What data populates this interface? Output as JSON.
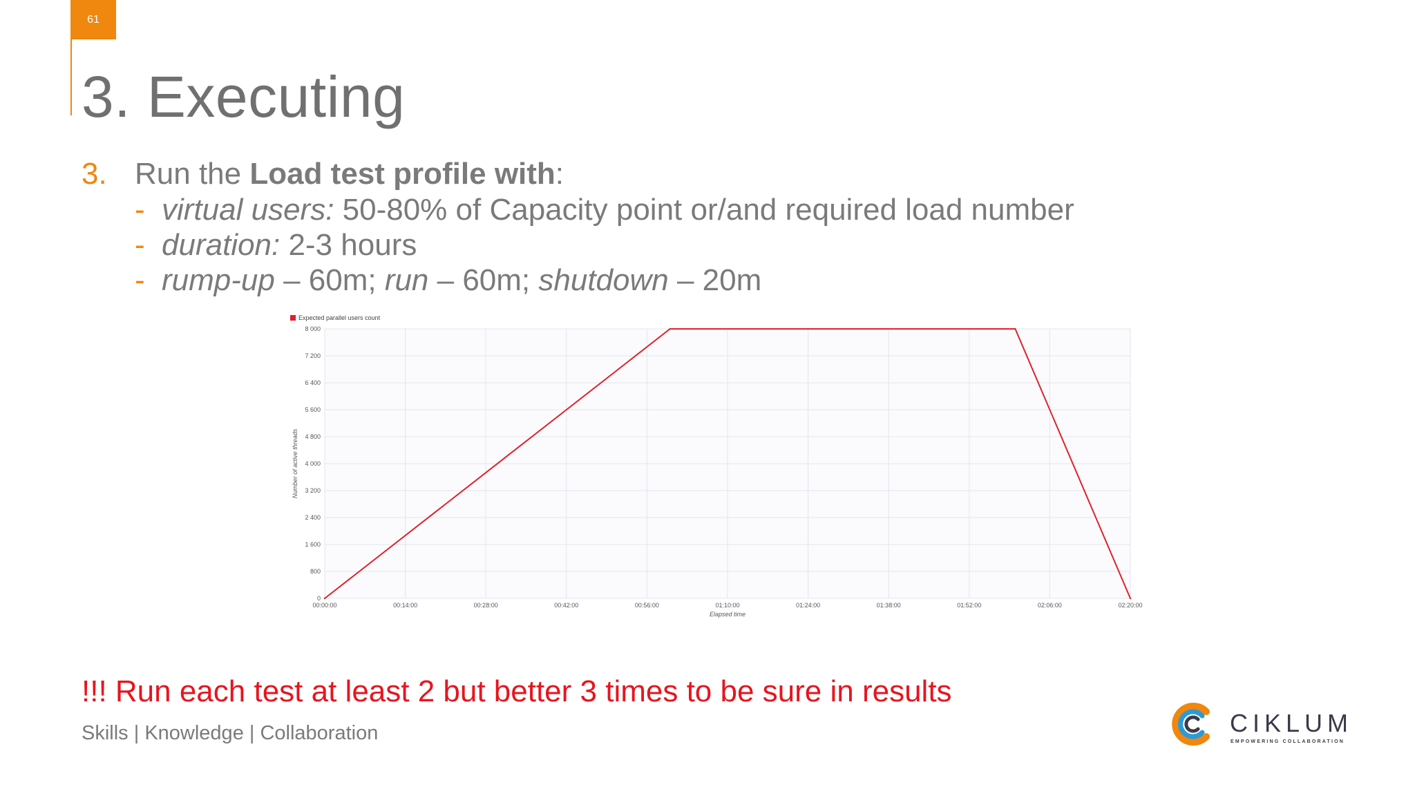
{
  "slide": {
    "number": "61",
    "title": "3. Executing"
  },
  "list": {
    "number": "3.",
    "intro": "Run the ",
    "intro_bold": "Load test profile with",
    "intro_end": ":",
    "items": [
      {
        "dash": "-",
        "italic": "virtual users:",
        "rest": " 50-80% of Capacity point or/and required load number"
      },
      {
        "dash": "-",
        "italic": "duration:",
        "rest": " 2-3 hours"
      },
      {
        "dash": "-",
        "parts": [
          {
            "t": "rump-up",
            "i": true
          },
          {
            "t": " – 60m; ",
            "i": false
          },
          {
            "t": "run",
            "i": true
          },
          {
            "t": " – 60m; ",
            "i": false
          },
          {
            "t": "shutdown",
            "i": true
          },
          {
            "t": " – 20m",
            "i": false
          }
        ]
      }
    ]
  },
  "warning": "!!! Run each test at least 2 but better 3 times to be sure in results",
  "footer": "Skills | Knowledge | Collaboration",
  "logo": {
    "word": "CIKLUM",
    "tagline": "EMPOWERING COLLABORATION"
  },
  "chart_data": {
    "type": "line",
    "legend": "Expected parallel users count",
    "legend_position": "top-left",
    "xlabel": "Elapsed time",
    "ylabel": "Number of active threads",
    "x_ticks": [
      "00:00:00",
      "00:14:00",
      "00:28:00",
      "00:42:00",
      "00:56:00",
      "01:10:00",
      "01:24:00",
      "01:38:00",
      "01:52:00",
      "02:06:00",
      "02:20:00"
    ],
    "y_ticks": [
      "0",
      "800",
      "1 600",
      "2 400",
      "3 200",
      "4 000",
      "4 800",
      "5 600",
      "6 400",
      "7 200",
      "8 000"
    ],
    "xlim_minutes": [
      0,
      140
    ],
    "ylim": [
      0,
      8000
    ],
    "grid": true,
    "series": [
      {
        "name": "Expected parallel users count",
        "color": "#e0202a",
        "x_minutes": [
          0,
          60,
          120,
          140
        ],
        "y": [
          0,
          8000,
          8000,
          0
        ]
      }
    ]
  }
}
